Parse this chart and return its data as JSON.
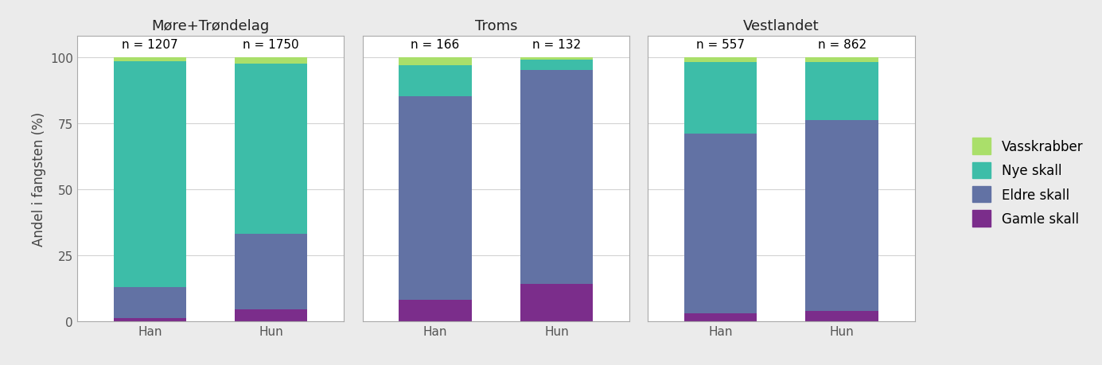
{
  "groups": [
    "Møre+Trøndelag",
    "Troms",
    "Vestlandet"
  ],
  "bars": [
    "Han",
    "Hun"
  ],
  "n_values": {
    "Møre+Trøndelag": {
      "Han": "n = 1207",
      "Hun": "n = 1750"
    },
    "Troms": {
      "Han": "n = 166",
      "Hun": "n = 132"
    },
    "Vestlandet": {
      "Han": "n = 557",
      "Hun": "n = 862"
    }
  },
  "data": {
    "Møre+Trøndelag": {
      "Han": {
        "Gamle skall": 1.0,
        "Eldre skall": 12.0,
        "Nye skall": 85.5,
        "Vasskrabber": 1.5
      },
      "Hun": {
        "Gamle skall": 4.5,
        "Eldre skall": 28.5,
        "Nye skall": 64.5,
        "Vasskrabber": 2.5
      }
    },
    "Troms": {
      "Han": {
        "Gamle skall": 8.0,
        "Eldre skall": 77.0,
        "Nye skall": 12.0,
        "Vasskrabber": 3.0
      },
      "Hun": {
        "Gamle skall": 14.0,
        "Eldre skall": 81.0,
        "Nye skall": 4.0,
        "Vasskrabber": 1.0
      }
    },
    "Vestlandet": {
      "Han": {
        "Gamle skall": 3.0,
        "Eldre skall": 68.0,
        "Nye skall": 27.0,
        "Vasskrabber": 2.0
      },
      "Hun": {
        "Gamle skall": 4.0,
        "Eldre skall": 72.0,
        "Nye skall": 22.0,
        "Vasskrabber": 2.0
      }
    }
  },
  "categories": [
    "Gamle skall",
    "Eldre skall",
    "Nye skall",
    "Vasskrabber"
  ],
  "colors": {
    "Gamle skall": "#7B2D8B",
    "Eldre skall": "#6272A4",
    "Nye skall": "#3DBDA8",
    "Vasskrabber": "#AADF6A"
  },
  "ylabel": "Andel i fangsten (%)",
  "ylim": [
    0,
    100
  ],
  "yticks": [
    0,
    25,
    50,
    75,
    100
  ],
  "background_color": "#EBEBEB",
  "panel_background": "#FFFFFF",
  "grid_color": "#D3D3D3",
  "title_fontsize": 13,
  "axis_fontsize": 12,
  "tick_fontsize": 11,
  "n_fontsize": 11,
  "legend_fontsize": 12
}
